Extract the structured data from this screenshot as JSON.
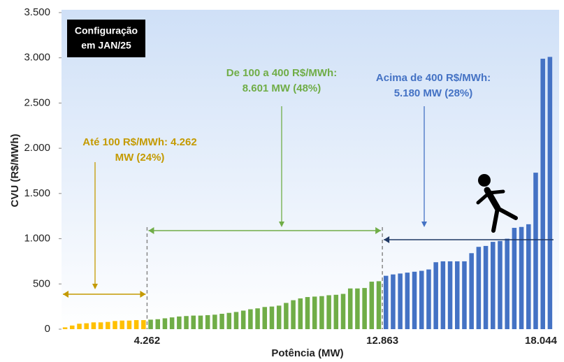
{
  "chart_data": {
    "type": "bar",
    "y_label": "CVU (R$/MWh)",
    "x_label": "Potência (MW)",
    "ylim": [
      0,
      3500
    ],
    "yticks": [
      0,
      500,
      {
        "value": 1000,
        "label": "1.000"
      },
      {
        "value": 1500,
        "label": "1.500"
      },
      {
        "value": 2000,
        "label": "2.000"
      },
      {
        "value": 2500,
        "label": "2.500"
      },
      {
        "value": 3000,
        "label": "3.000"
      },
      {
        "value": 3500,
        "label": "3.500"
      }
    ],
    "boundary_labels": [
      "4.262",
      "12.863",
      "18.044"
    ],
    "series": [
      {
        "name": "Até 100 R$/MWh",
        "color": "#ffc000",
        "values": [
          20,
          40,
          60,
          65,
          75,
          75,
          80,
          90,
          95,
          95,
          100,
          100
        ]
      },
      {
        "name": "De 100 a 400 R$/MWh",
        "color": "#70ad47",
        "values": [
          105,
          110,
          120,
          130,
          140,
          145,
          150,
          150,
          155,
          160,
          170,
          180,
          190,
          205,
          220,
          230,
          245,
          250,
          260,
          290,
          320,
          340,
          355,
          360,
          365,
          375,
          380,
          390,
          450,
          450,
          455,
          525,
          530
        ]
      },
      {
        "name": "Acima de 400 R$/MWh",
        "color": "#4472c4",
        "values": [
          590,
          605,
          615,
          625,
          635,
          645,
          660,
          740,
          750,
          750,
          750,
          750,
          840,
          910,
          920,
          965,
          975,
          1000,
          1120,
          1130,
          1160,
          1730,
          2990,
          3010
        ]
      }
    ],
    "config_box": [
      "Configuração",
      "em JAN/25"
    ],
    "annotations": [
      {
        "lines": [
          "Até 100 R$/MWh: 4.262",
          "MW (24%)"
        ],
        "color": "#c49a00"
      },
      {
        "lines": [
          "De 100 a 400 R$/MWh:",
          "8.601 MW (48%)"
        ],
        "color": "#70ad47"
      },
      {
        "lines": [
          "Acima de 400 R$/MWh:",
          "5.180 MW (28%)"
        ],
        "color": "#4472c4"
      }
    ]
  }
}
